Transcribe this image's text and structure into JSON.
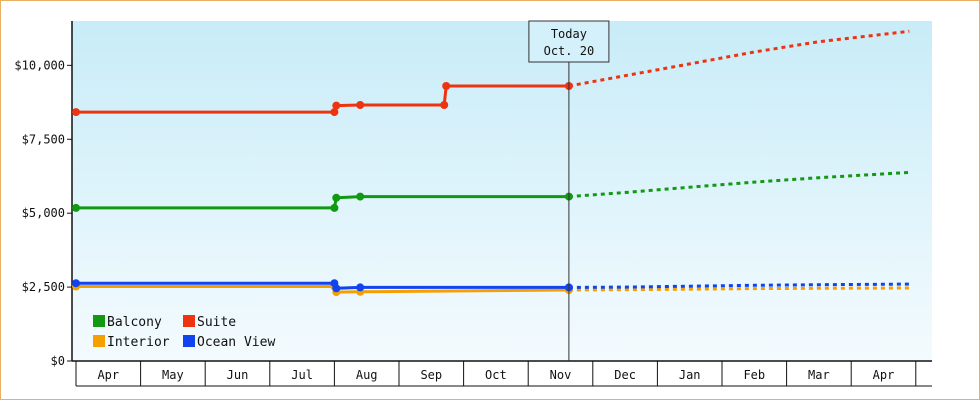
{
  "chart_data": {
    "type": "line",
    "y_axis": {
      "min": 0,
      "max": 11500,
      "ticks": [
        0,
        2500,
        5000,
        7500,
        10000
      ],
      "tick_labels": [
        "$0",
        "$2,500",
        "$5,000",
        "$7,500",
        "$10,000"
      ]
    },
    "x_axis": {
      "months": [
        "Apr",
        "May",
        "Jun",
        "Jul",
        "Aug",
        "Sep",
        "Oct",
        "Nov",
        "Dec",
        "Jan",
        "Feb",
        "Mar",
        "Apr"
      ]
    },
    "today_marker": {
      "line1": "Today",
      "line2": "Oct. 20",
      "x": 7.63
    },
    "series": [
      {
        "name": "Suite",
        "color": "#ee3311",
        "points": [
          [
            0.0,
            8420
          ],
          [
            4.0,
            8420
          ],
          [
            4.03,
            8640
          ],
          [
            4.4,
            8660
          ],
          [
            5.7,
            8660
          ],
          [
            5.73,
            9300
          ],
          [
            7.63,
            9300
          ]
        ],
        "forecast": [
          [
            7.63,
            9300
          ],
          [
            8.5,
            9650
          ],
          [
            9.5,
            10050
          ],
          [
            10.5,
            10450
          ],
          [
            11.5,
            10800
          ],
          [
            12.9,
            11150
          ]
        ]
      },
      {
        "name": "Balcony",
        "color": "#119911",
        "points": [
          [
            0.0,
            5180
          ],
          [
            4.0,
            5180
          ],
          [
            4.03,
            5520
          ],
          [
            4.4,
            5560
          ],
          [
            7.63,
            5560
          ]
        ],
        "forecast": [
          [
            7.63,
            5560
          ],
          [
            8.5,
            5700
          ],
          [
            9.5,
            5880
          ],
          [
            10.5,
            6050
          ],
          [
            11.5,
            6200
          ],
          [
            12.9,
            6380
          ]
        ]
      },
      {
        "name": "Ocean View",
        "color": "#1144ee",
        "points": [
          [
            0.0,
            2630
          ],
          [
            4.0,
            2630
          ],
          [
            4.03,
            2460
          ],
          [
            4.4,
            2490
          ],
          [
            7.63,
            2490
          ]
        ],
        "forecast": [
          [
            7.63,
            2490
          ],
          [
            8.5,
            2500
          ],
          [
            9.5,
            2530
          ],
          [
            10.5,
            2560
          ],
          [
            11.5,
            2580
          ],
          [
            12.9,
            2600
          ]
        ]
      },
      {
        "name": "Interior",
        "color": "#f5a000",
        "points": [
          [
            0.0,
            2520
          ],
          [
            4.0,
            2520
          ],
          [
            4.03,
            2330
          ],
          [
            4.4,
            2340
          ],
          [
            7.63,
            2400
          ]
        ],
        "forecast": [
          [
            7.63,
            2400
          ],
          [
            8.5,
            2410
          ],
          [
            9.5,
            2430
          ],
          [
            10.5,
            2450
          ],
          [
            11.5,
            2460
          ],
          [
            12.9,
            2470
          ]
        ]
      }
    ],
    "legend": {
      "placement": "bottom-left",
      "items": [
        {
          "name": "Balcony",
          "color": "#119911"
        },
        {
          "name": "Suite",
          "color": "#ee3311"
        },
        {
          "name": "Interior",
          "color": "#f5a000"
        },
        {
          "name": "Ocean View",
          "color": "#1144ee"
        }
      ]
    },
    "background_gradient": [
      "#c8ecf8",
      "#f4fbfe"
    ]
  }
}
